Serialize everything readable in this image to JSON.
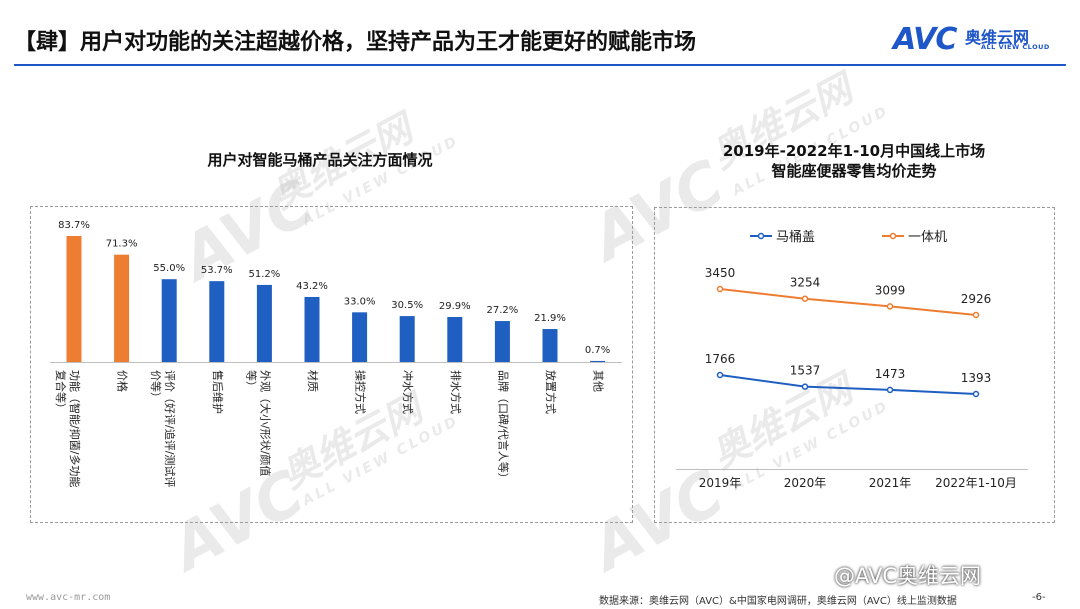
{
  "header": {
    "title": "【肆】用户对功能的关注超越价格，坚持产品为王才能更好的赋能市场",
    "logo_main": "AVC",
    "logo_cn": "奥维云网",
    "logo_en": "ALL VIEW CLOUD"
  },
  "watermark": {
    "big": "AVC",
    "cn": "奥维云网",
    "en": "ALL VIEW CLOUD"
  },
  "colors": {
    "orange": "#ED7D31",
    "blue": "#1F5FC1",
    "accent": "#1F56C8"
  },
  "chart_data": [
    {
      "type": "bar",
      "title": "用户对智能马桶产品关注方面情况",
      "categories": [
        "功能（智能/抑菌/多功能复合等）",
        "价格",
        "评价（好评/追评/测试评价等）",
        "售后维护",
        "外观（大小/形状/颜值等）",
        "材质",
        "操控方式",
        "冲水方式",
        "排水方式",
        "品牌（口碑/代言人等）",
        "放置方式",
        "其他"
      ],
      "category_lines": [
        [
          "功能（智能/抑菌/多功能",
          "复合等）"
        ],
        [
          "价格"
        ],
        [
          "评价（好评/追评/测试评",
          "价等）"
        ],
        [
          "售后维护"
        ],
        [
          "外观（大小/形状/颜值",
          "等）"
        ],
        [
          "材质"
        ],
        [
          "操控方式"
        ],
        [
          "冲水方式"
        ],
        [
          "排水方式"
        ],
        [
          "品牌（口碑/代言人等）"
        ],
        [
          "放置方式"
        ],
        [
          "其他"
        ]
      ],
      "values": [
        83.7,
        71.3,
        55.0,
        53.7,
        51.2,
        43.2,
        33.0,
        30.5,
        29.9,
        27.2,
        21.9,
        0.7
      ],
      "value_labels": [
        "83.7%",
        "71.3%",
        "55.0%",
        "53.7%",
        "51.2%",
        "43.2%",
        "33.0%",
        "30.5%",
        "29.9%",
        "27.2%",
        "21.9%",
        "0.7%"
      ],
      "highlight": [
        true,
        true,
        false,
        false,
        false,
        false,
        false,
        false,
        false,
        false,
        false,
        false
      ],
      "ylim": [
        0,
        90
      ],
      "unit": "%"
    },
    {
      "type": "line",
      "title": "2019年-2022年1-10月中国线上市场智能座便器零售均价走势",
      "title_lines": [
        "2019年-2022年1-10月中国线上市场",
        "智能座便器零售均价走势"
      ],
      "categories": [
        "2019年",
        "2020年",
        "2021年",
        "2022年1-10月"
      ],
      "series": [
        {
          "name": "马桶盖",
          "values": [
            1766,
            1537,
            1473,
            1393
          ],
          "color": "#1F5FC1"
        },
        {
          "name": "一体机",
          "values": [
            3450,
            3254,
            3099,
            2926
          ],
          "color": "#ED7D31"
        }
      ],
      "legend": "top-left"
    }
  ],
  "footer": {
    "url": "www.avc-mr.com",
    "source": "数据来源：奥维云网（AVC）&中国家电网调研，奥维云网（AVC）线上监测数据",
    "page": "-6-",
    "credit": "@AVC奥维云网"
  }
}
